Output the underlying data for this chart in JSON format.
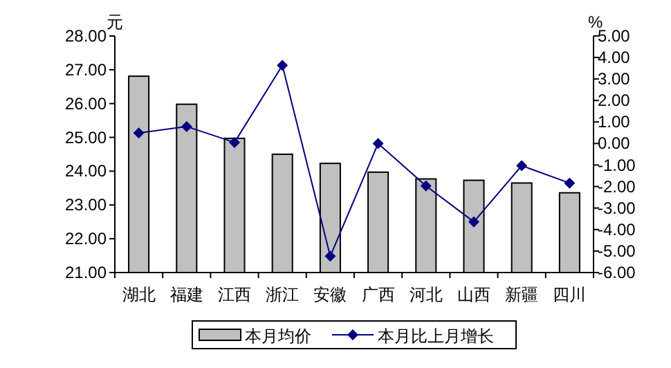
{
  "chart_data": {
    "type": "bar",
    "ylabel": "元",
    "y2label": "%",
    "categories": [
      "湖北",
      "福建",
      "江西",
      "浙江",
      "安徽",
      "广西",
      "河北",
      "山西",
      "新疆",
      "四川"
    ],
    "series": [
      {
        "name": "本月均价",
        "color": "#c0c0c0",
        "values": [
          26.81,
          25.98,
          24.97,
          24.5,
          24.23,
          23.97,
          23.77,
          23.73,
          23.65,
          23.36
        ]
      },
      {
        "name": "本月比上月增长",
        "type": "line",
        "axis": "y2",
        "color": "#000080",
        "marker": "diamond",
        "values": [
          0.49,
          0.79,
          0.05,
          3.63,
          -5.24,
          0.0,
          -1.97,
          -3.64,
          -1.03,
          -1.84
        ]
      }
    ],
    "ylim": [
      21,
      28
    ],
    "yticks": [
      {
        "value": 21,
        "label": "21.00"
      },
      {
        "value": 22,
        "label": "22.00"
      },
      {
        "value": 23,
        "label": "23.00"
      },
      {
        "value": 24,
        "label": "24.00"
      },
      {
        "value": 25,
        "label": "25.00"
      },
      {
        "value": 26,
        "label": "26.00"
      },
      {
        "value": 27,
        "label": "27.00"
      },
      {
        "value": 28,
        "label": "28.00"
      }
    ],
    "y2lim": [
      -6,
      5
    ],
    "y2ticks": [
      {
        "value": -6,
        "label": "-6.00"
      },
      {
        "value": -5,
        "label": "-5.00"
      },
      {
        "value": -4,
        "label": "-4.00"
      },
      {
        "value": -3,
        "label": "-3.00"
      },
      {
        "value": -2,
        "label": "-2.00"
      },
      {
        "value": -1,
        "label": "-1.00"
      },
      {
        "value": 0,
        "label": "0.00"
      },
      {
        "value": 1,
        "label": "1.00"
      },
      {
        "value": 2,
        "label": "2.00"
      },
      {
        "value": 3,
        "label": "3.00"
      },
      {
        "value": 4,
        "label": "4.00"
      },
      {
        "value": 5,
        "label": "5.00"
      }
    ],
    "grid": false,
    "legend": "bottom"
  }
}
